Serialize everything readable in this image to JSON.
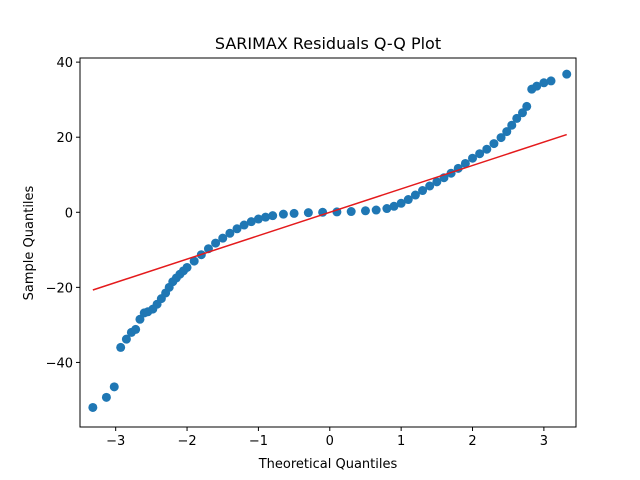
{
  "chart_data": {
    "type": "scatter",
    "title": "SARIMAX Residuals Q-Q Plot",
    "x_label": "Theoretical Quantiles",
    "y_label": "Sample Quantiles",
    "color": "#1f77b4",
    "x": [
      -3.32,
      -3.13,
      -3.02,
      -2.93,
      -2.85,
      -2.78,
      -2.72,
      -2.66,
      -2.6,
      -2.55,
      -2.48,
      -2.42,
      -2.36,
      -2.3,
      -2.25,
      -2.2,
      -2.15,
      -2.1,
      -2.05,
      -2.0,
      -1.9,
      -1.8,
      -1.7,
      -1.6,
      -1.5,
      -1.4,
      -1.3,
      -1.2,
      -1.1,
      -1.0,
      -0.9,
      -0.8,
      -0.65,
      -0.5,
      -0.3,
      -0.1,
      0.1,
      0.3,
      0.5,
      0.65,
      0.8,
      0.9,
      1.0,
      1.1,
      1.2,
      1.3,
      1.4,
      1.5,
      1.6,
      1.7,
      1.8,
      1.9,
      2.0,
      2.1,
      2.2,
      2.3,
      2.4,
      2.48,
      2.55,
      2.62,
      2.7,
      2.76,
      2.83,
      2.9,
      3.0,
      3.1,
      3.32
    ],
    "y": [
      -52,
      -49.3,
      -46.5,
      -36,
      -33.8,
      -32,
      -31.2,
      -28.5,
      -26.8,
      -26.5,
      -25.8,
      -24.5,
      -23,
      -21.5,
      -20,
      -18.5,
      -17.5,
      -16.5,
      -15.6,
      -14.7,
      -13,
      -11.3,
      -9.7,
      -8.2,
      -6.9,
      -5.6,
      -4.4,
      -3.4,
      -2.5,
      -1.8,
      -1.3,
      -0.9,
      -0.5,
      -0.3,
      -0.1,
      0,
      0.1,
      0.2,
      0.4,
      0.6,
      1.0,
      1.6,
      2.4,
      3.4,
      4.6,
      5.8,
      7.0,
      8.1,
      9.2,
      10.4,
      11.7,
      13.0,
      14.4,
      15.6,
      16.8,
      18.3,
      19.9,
      21.5,
      23.2,
      25,
      26.5,
      28.2,
      32.8,
      33.6,
      34.5,
      35,
      36.8
    ],
    "fit_line": {
      "x": [
        -3.32,
        3.32
      ],
      "y": [
        -20.7,
        20.7
      ],
      "color": "#e41a1c"
    },
    "xlim": [
      -3.5,
      3.45
    ],
    "ylim": [
      -57.2,
      41.1
    ],
    "xticks": [
      {
        "value": -3,
        "label": "−3"
      },
      {
        "value": -2,
        "label": "−2"
      },
      {
        "value": -1,
        "label": "−1"
      },
      0,
      1,
      2,
      3
    ],
    "yticks": [
      {
        "value": -40,
        "label": "−40"
      },
      {
        "value": -20,
        "label": "−20"
      },
      0,
      20,
      40
    ]
  }
}
